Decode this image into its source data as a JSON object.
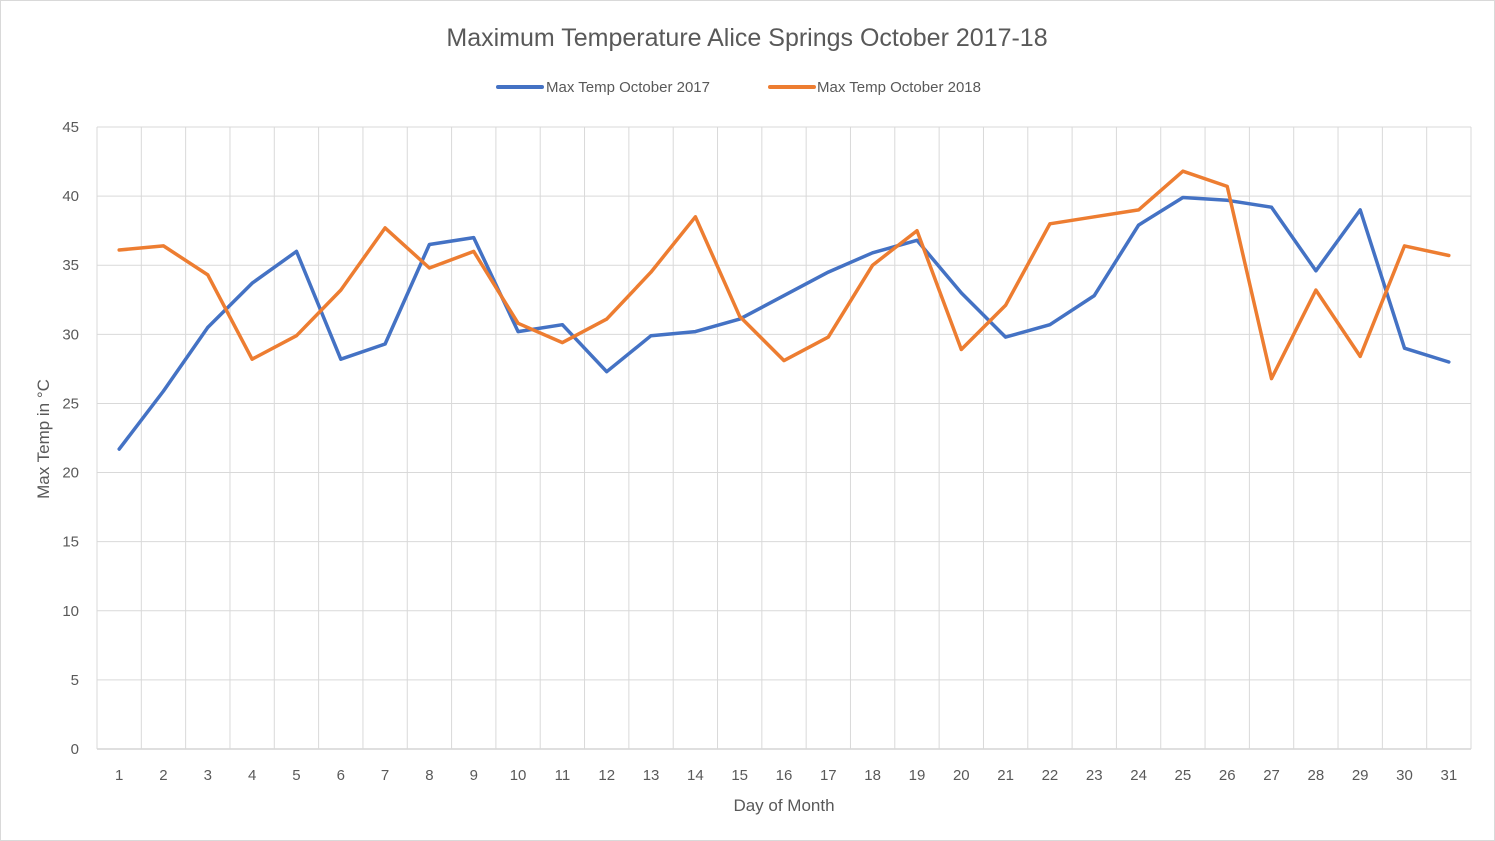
{
  "chart_data": {
    "type": "line",
    "title": "Maximum Temperature  Alice Springs October 2017-18",
    "xlabel": "Day of Month",
    "ylabel": "Max Temp in °C",
    "ylim": [
      0,
      45
    ],
    "yticks": [
      0,
      5,
      10,
      15,
      20,
      25,
      30,
      35,
      40,
      45
    ],
    "grid": true,
    "legend_position": "top",
    "categories": [
      "1",
      "2",
      "3",
      "4",
      "5",
      "6",
      "7",
      "8",
      "9",
      "10",
      "11",
      "12",
      "13",
      "14",
      "15",
      "16",
      "17",
      "18",
      "19",
      "20",
      "21",
      "22",
      "23",
      "24",
      "25",
      "26",
      "27",
      "28",
      "29",
      "30",
      "31"
    ],
    "series": [
      {
        "name": "Max Temp October 2017",
        "color": "#4472c4",
        "values": [
          21.7,
          25.9,
          30.5,
          33.7,
          36.0,
          28.2,
          29.3,
          36.5,
          37.0,
          30.2,
          30.7,
          27.3,
          29.9,
          30.2,
          31.1,
          32.8,
          34.5,
          35.9,
          36.8,
          33.0,
          29.8,
          30.7,
          32.8,
          37.9,
          39.9,
          39.7,
          39.2,
          34.6,
          39.0,
          29.0,
          28.0
        ]
      },
      {
        "name": "Max Temp October 2018",
        "color": "#ed7d31",
        "values": [
          36.1,
          36.4,
          34.3,
          28.2,
          29.9,
          33.2,
          37.7,
          34.8,
          36.0,
          30.8,
          29.4,
          31.1,
          34.5,
          38.5,
          31.3,
          28.1,
          29.8,
          35.0,
          37.5,
          28.9,
          32.1,
          38.0,
          38.5,
          39.0,
          41.8,
          40.7,
          26.8,
          33.2,
          28.4,
          36.4,
          35.7
        ]
      }
    ]
  }
}
